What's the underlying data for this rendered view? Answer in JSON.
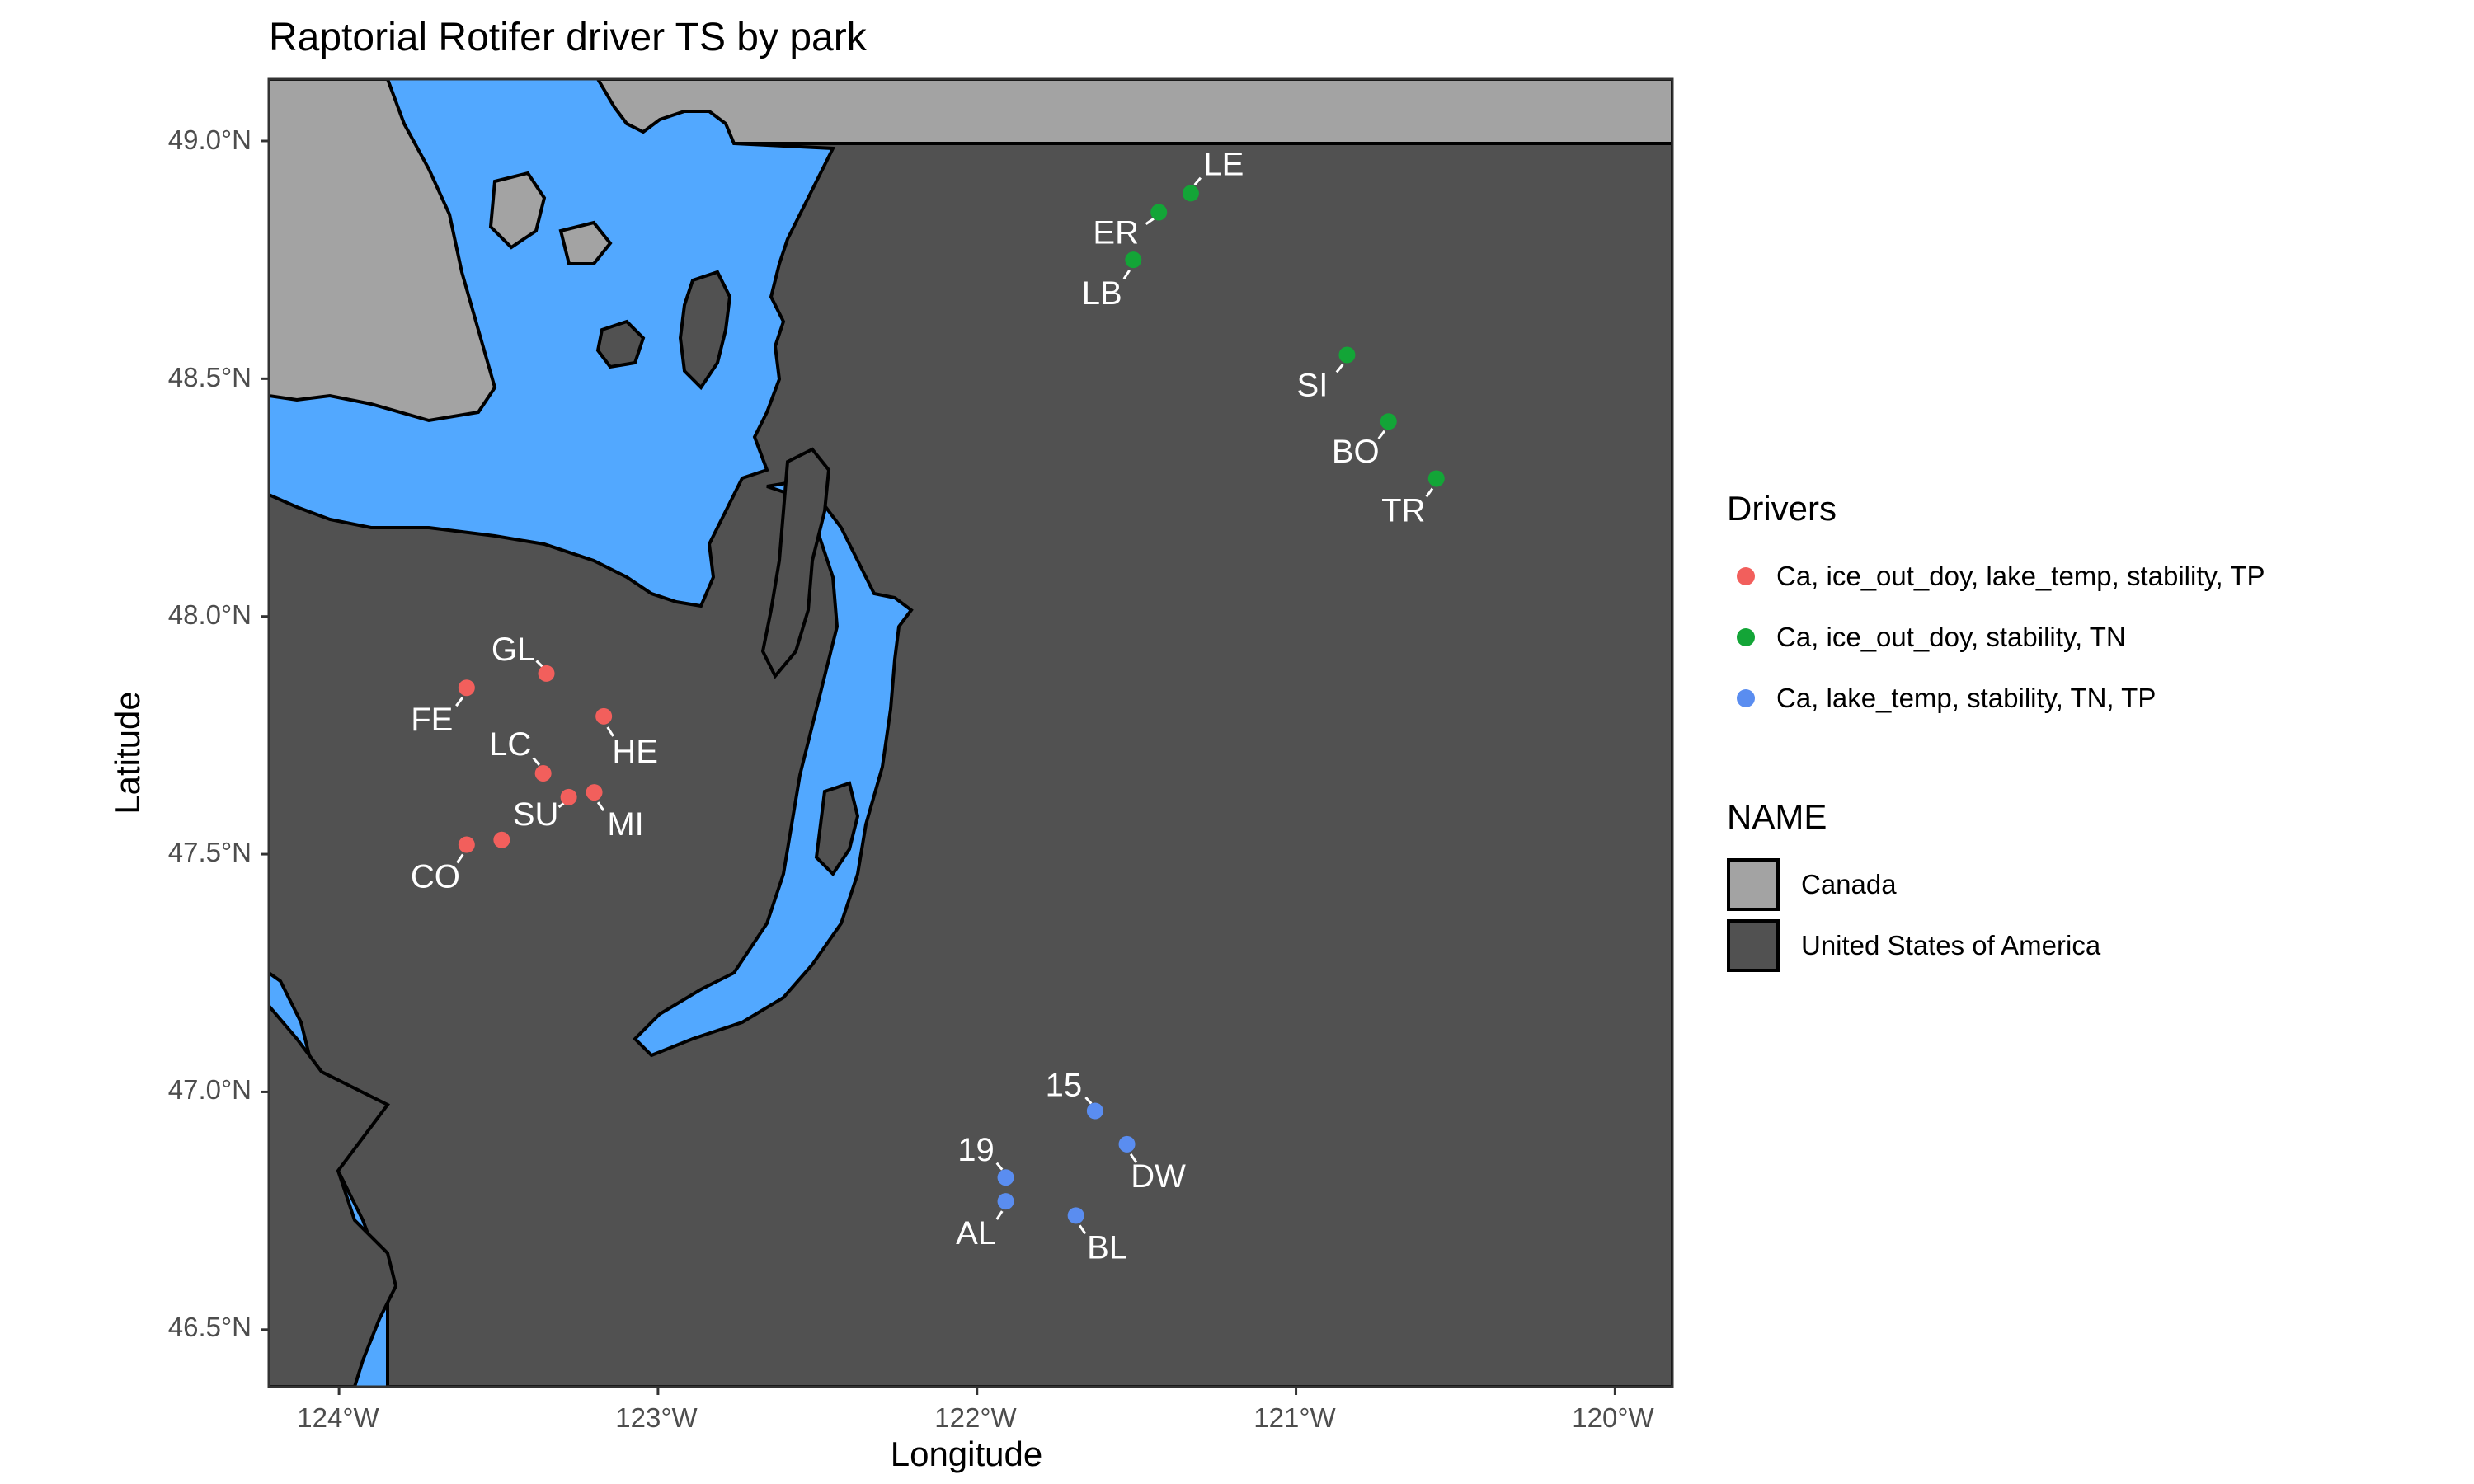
{
  "title": "Raptorial Rotifer driver TS by park",
  "axes": {
    "xlabel": "Longitude",
    "ylabel": "Latitude",
    "x_ticks": [
      "124°W",
      "123°W",
      "122°W",
      "121°W",
      "120°W"
    ],
    "y_ticks": [
      "49.0°N",
      "48.5°N",
      "48.0°N",
      "47.5°N",
      "47.0°N",
      "46.5°N"
    ]
  },
  "colors": {
    "water": "#52a8ff",
    "usa": "#515151",
    "canada": "#a3a3a3",
    "drivers_red": "#f25f5c",
    "drivers_green": "#13a537",
    "drivers_blue": "#5a8df0"
  },
  "legend": {
    "drivers_title": "Drivers",
    "drivers": [
      {
        "label": "Ca, ice_out_doy, lake_temp, stability, TP",
        "color": "#f25f5c"
      },
      {
        "label": "Ca, ice_out_doy, stability, TN",
        "color": "#13a537"
      },
      {
        "label": "Ca, lake_temp, stability, TN, TP",
        "color": "#5a8df0"
      }
    ],
    "name_title": "NAME",
    "names": [
      {
        "label": "Canada",
        "color": "#a3a3a3"
      },
      {
        "label": "United States of America",
        "color": "#515151"
      }
    ]
  },
  "chart_data": {
    "type": "scatter",
    "xlim": [
      -124.22,
      -119.82
    ],
    "ylim": [
      46.38,
      49.13
    ],
    "grid": false,
    "legend_position": "right",
    "points": [
      {
        "label": "LE",
        "lon": -121.33,
        "lat": 48.89,
        "group": 1
      },
      {
        "label": "ER",
        "lon": -121.43,
        "lat": 48.85,
        "group": 1
      },
      {
        "label": "LB",
        "lon": -121.51,
        "lat": 48.75,
        "group": 1
      },
      {
        "label": "SI",
        "lon": -120.84,
        "lat": 48.55,
        "group": 1
      },
      {
        "label": "BO",
        "lon": -120.71,
        "lat": 48.41,
        "group": 1
      },
      {
        "label": "TR",
        "lon": -120.56,
        "lat": 48.29,
        "group": 1
      },
      {
        "label": "GL",
        "lon": -123.35,
        "lat": 47.88,
        "group": 0
      },
      {
        "label": "FE",
        "lon": -123.6,
        "lat": 47.85,
        "group": 0
      },
      {
        "label": "HE",
        "lon": -123.17,
        "lat": 47.79,
        "group": 0
      },
      {
        "label": "LC",
        "lon": -123.36,
        "lat": 47.67,
        "group": 0
      },
      {
        "label": "MI",
        "lon": -123.2,
        "lat": 47.63,
        "group": 0
      },
      {
        "label": "SU",
        "lon": -123.28,
        "lat": 47.62,
        "group": 0
      },
      {
        "label": "CO",
        "lon": -123.6,
        "lat": 47.52,
        "group": 0
      },
      {
        "label": "",
        "lon": -123.49,
        "lat": 47.53,
        "group": 0
      },
      {
        "label": "15",
        "lon": -121.63,
        "lat": 46.96,
        "group": 2
      },
      {
        "label": "DW",
        "lon": -121.53,
        "lat": 46.89,
        "group": 2
      },
      {
        "label": "19",
        "lon": -121.91,
        "lat": 46.82,
        "group": 2
      },
      {
        "label": "AL",
        "lon": -121.91,
        "lat": 46.77,
        "group": 2
      },
      {
        "label": "BL",
        "lon": -121.69,
        "lat": 46.74,
        "group": 2
      }
    ]
  }
}
